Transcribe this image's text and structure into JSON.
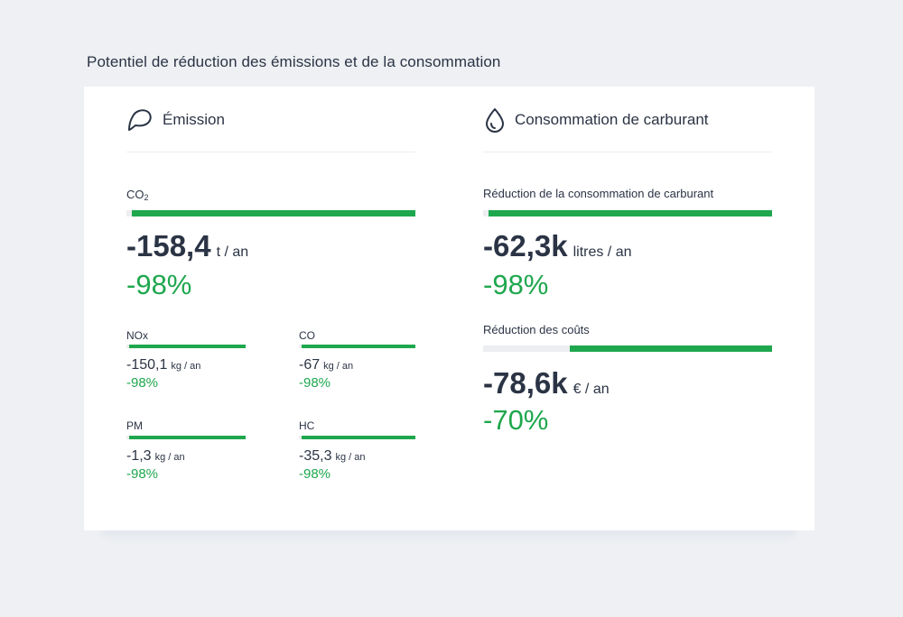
{
  "page_title": "Potentiel de réduction des émissions et de la consommation",
  "colors": {
    "accent_green": "#1fa74e",
    "text_dark": "#2b3445",
    "track_grey": "#eceef1"
  },
  "emission": {
    "icon": "speech-leaf-icon",
    "title": "Émission",
    "co2": {
      "label": "CO",
      "label_sub": "2",
      "value": "-158,4",
      "unit": "t / an",
      "percent": "-98%",
      "fill": 0.98
    },
    "pollutants": [
      {
        "label": "NOx",
        "value": "-150,1",
        "unit": "kg / an",
        "percent": "-98%",
        "fill": 0.98
      },
      {
        "label": "CO",
        "value": "-67",
        "unit": "kg / an",
        "percent": "-98%",
        "fill": 0.98
      },
      {
        "label": "PM",
        "value": "-1,3",
        "unit": "kg / an",
        "percent": "-98%",
        "fill": 0.98
      },
      {
        "label": "HC",
        "value": "-35,3",
        "unit": "kg / an",
        "percent": "-98%",
        "fill": 0.98
      }
    ]
  },
  "fuel": {
    "icon": "water-drop-icon",
    "title": "Consommation de carburant",
    "consumption": {
      "label": "Réduction de la consommation de carburant",
      "value": "-62,3k",
      "unit": "litres / an",
      "percent": "-98%",
      "fill": 0.98
    },
    "costs": {
      "label": "Réduction des coûts",
      "value": "-78,6k",
      "unit": "€ / an",
      "percent": "-70%",
      "fill": 0.7
    }
  }
}
